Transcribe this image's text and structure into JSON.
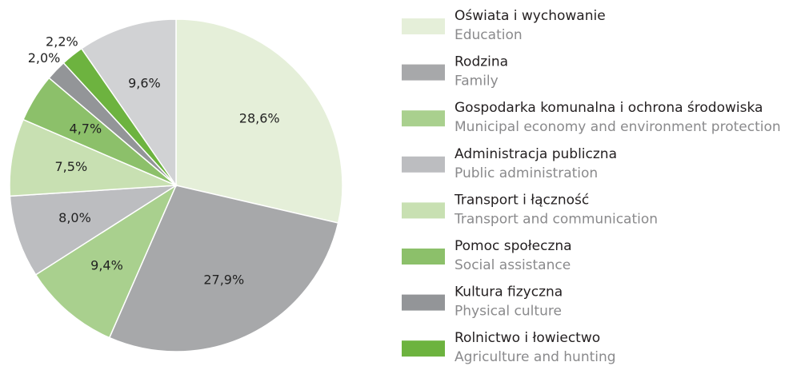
{
  "chart_data": {
    "type": "pie",
    "categories": [
      "Oświata i wychowanie",
      "Rodzina",
      "Gospodarka komunalna i ochrona środowiska",
      "Administracja publiczna",
      "Transport i łączność",
      "Pomoc społeczna",
      "Kultura fizyczna",
      "Rolnictwo i łowiectwo",
      null
    ],
    "categories_en": [
      "Education",
      "Family",
      "Municipal economy and environment protection",
      "Public administration",
      "Transport and communication",
      "Social assistance",
      "Physical culture",
      "Agriculture and hunting",
      null
    ],
    "values": [
      28.6,
      27.9,
      9.4,
      8.0,
      7.5,
      4.7,
      2.0,
      2.2,
      9.6
    ],
    "value_labels": [
      "28,6%",
      "27,9%",
      "9,4%",
      "8,0%",
      "7,5%",
      "4,7%",
      "2,0%",
      "2,2%",
      "9,6%"
    ],
    "colors": [
      "#e5efd9",
      "#a7a8aa",
      "#a9d08e",
      "#bcbdc0",
      "#c8e0b2",
      "#8cc06a",
      "#939598",
      "#6db33f",
      "#d1d2d4"
    ]
  }
}
